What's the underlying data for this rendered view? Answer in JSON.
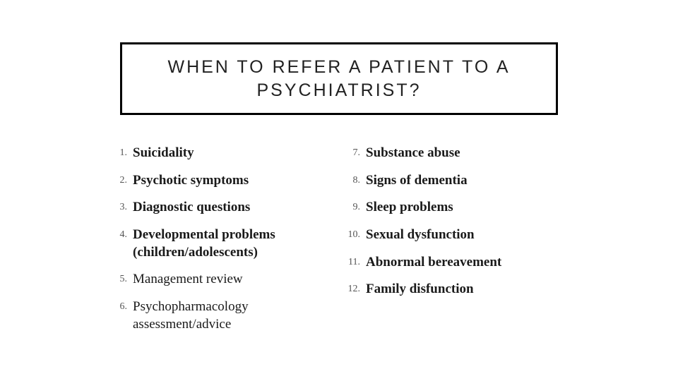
{
  "title": "WHEN TO REFER A PATIENT TO A PSYCHIATRIST?",
  "left_items": [
    {
      "n": "1.",
      "t": "Suicidality",
      "bold": true
    },
    {
      "n": "2.",
      "t": "Psychotic symptoms",
      "bold": true
    },
    {
      "n": "3.",
      "t": "Diagnostic questions",
      "bold": true
    },
    {
      "n": "4.",
      "t": "Developmental problems (children/adolescents)",
      "bold": true
    },
    {
      "n": "5.",
      "t": "Management review",
      "bold": false
    },
    {
      "n": "6.",
      "t": "Psychopharmacology assessment/advice",
      "bold": false
    }
  ],
  "right_items": [
    {
      "n": "7.",
      "t": "Substance abuse",
      "bold": true
    },
    {
      "n": "8.",
      "t": "Signs of dementia",
      "bold": true
    },
    {
      "n": "9.",
      "t": "Sleep problems",
      "bold": true
    },
    {
      "n": "10.",
      "t": "Sexual dysfunction",
      "bold": true
    },
    {
      "n": "11.",
      "t": "Abnormal bereavement",
      "bold": true
    },
    {
      "n": "12.",
      "t": "Family disfunction",
      "bold": true
    }
  ],
  "style": {
    "title_fontsize": 25,
    "title_letter_spacing": 3,
    "title_border_color": "#000000",
    "title_border_width": 3,
    "item_fontsize": 19,
    "num_fontsize": 14,
    "num_color": "#555555",
    "text_color": "#1a1a1a",
    "background": "#ffffff"
  }
}
